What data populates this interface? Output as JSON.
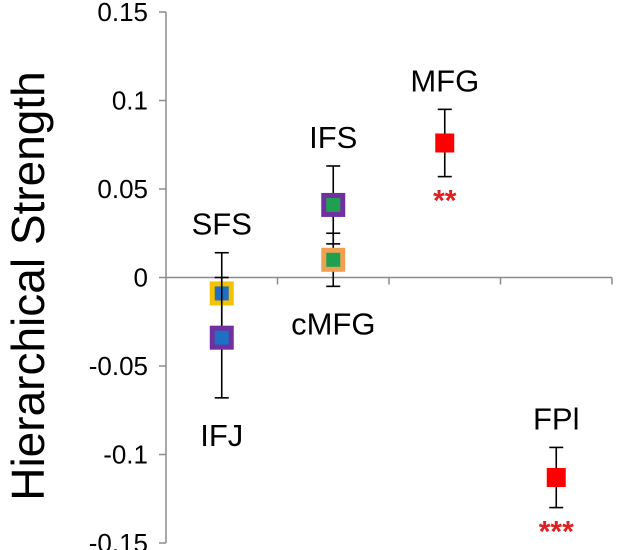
{
  "chart_data": {
    "type": "scatter",
    "title": "",
    "xlabel": "",
    "ylabel": "Hierarchical Strength",
    "ylim": [
      -0.15,
      0.15
    ],
    "yticks": [
      "0.15",
      "0.1",
      "0.05",
      "0",
      "-0.05",
      "-0.1",
      "-0.15"
    ],
    "grid": false,
    "x_categories": 4,
    "points": [
      {
        "label": "SFS",
        "x": 1,
        "y": -0.009,
        "err_low": 0.021,
        "err_high": 0.023,
        "fill": "#1f6fc4",
        "edge": "#f5c200",
        "significance": ""
      },
      {
        "label": "IFJ",
        "x": 1,
        "y": -0.034,
        "err_low": 0.034,
        "err_high": 0.034,
        "fill": "#1f6fc4",
        "edge": "#7030a0",
        "significance": ""
      },
      {
        "label": "IFS",
        "x": 2,
        "y": 0.041,
        "err_low": 0.022,
        "err_high": 0.022,
        "fill": "#1fa050",
        "edge": "#7030a0",
        "significance": ""
      },
      {
        "label": "cMFG",
        "x": 2,
        "y": 0.01,
        "err_low": 0.015,
        "err_high": 0.015,
        "fill": "#1fa050",
        "edge": "#f0a050",
        "significance": ""
      },
      {
        "label": "MFG",
        "x": 3,
        "y": 0.076,
        "err_low": 0.019,
        "err_high": 0.019,
        "fill": "#ff0000",
        "edge": "#ff0000",
        "significance": "**"
      },
      {
        "label": "FPl",
        "x": 4,
        "y": -0.113,
        "err_low": 0.017,
        "err_high": 0.017,
        "fill": "#ff0000",
        "edge": "#ff0000",
        "significance": "***"
      }
    ],
    "significance_color": "#e02020"
  }
}
